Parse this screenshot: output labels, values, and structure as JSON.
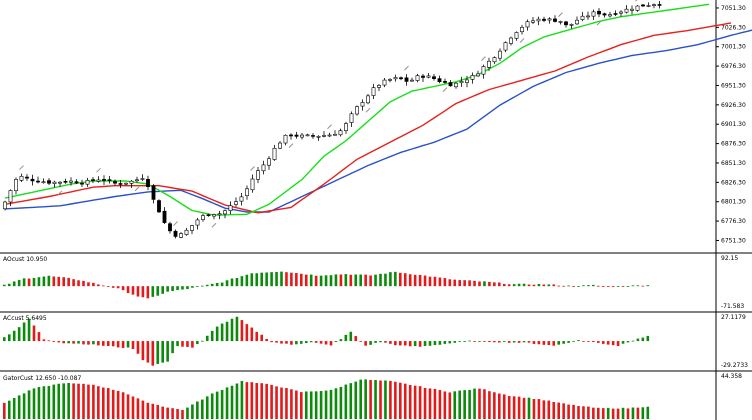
{
  "colors": {
    "background": "#ffffff",
    "bull_candle": "#ffffff",
    "bear_candle": "#000000",
    "candle_outline": "#000000",
    "jaw": "#2a52c8",
    "teeth": "#e8201c",
    "lips": "#18e018",
    "hist_up": "#0b8a0b",
    "hist_down": "#e41a1a",
    "fractal": "#909090",
    "separator": "#000000"
  },
  "chart_data": [
    {
      "type": "candlestick",
      "panel": "price",
      "price_ticks": [
        "7051.30",
        "7026.30",
        "7001.30",
        "6976.30",
        "6951.30",
        "6926.30",
        "6901.30",
        "6876.30",
        "6851.30",
        "6826.30",
        "6801.30",
        "6776.30",
        "6751.30"
      ],
      "ylim": [
        6739,
        7059
      ],
      "n_bars": 120,
      "anchors": [
        [
          0,
          6792
        ],
        [
          2,
          6822
        ],
        [
          3,
          6835
        ],
        [
          5,
          6830
        ],
        [
          9,
          6826
        ],
        [
          12,
          6828
        ],
        [
          15,
          6826
        ],
        [
          18,
          6831
        ],
        [
          21,
          6824
        ],
        [
          24,
          6828
        ],
        [
          26,
          6834
        ],
        [
          27,
          6815
        ],
        [
          28,
          6796
        ],
        [
          29,
          6785
        ],
        [
          30,
          6767
        ],
        [
          32,
          6756
        ],
        [
          34,
          6766
        ],
        [
          36,
          6781
        ],
        [
          38,
          6786
        ],
        [
          40,
          6786
        ],
        [
          42,
          6798
        ],
        [
          44,
          6810
        ],
        [
          46,
          6836
        ],
        [
          48,
          6852
        ],
        [
          50,
          6874
        ],
        [
          52,
          6888
        ],
        [
          54,
          6886
        ],
        [
          57,
          6886
        ],
        [
          60,
          6888
        ],
        [
          62,
          6894
        ],
        [
          64,
          6918
        ],
        [
          66,
          6934
        ],
        [
          68,
          6950
        ],
        [
          70,
          6958
        ],
        [
          72,
          6961
        ],
        [
          74,
          6956
        ],
        [
          76,
          6964
        ],
        [
          78,
          6962
        ],
        [
          80,
          6956
        ],
        [
          82,
          6952
        ],
        [
          84,
          6958
        ],
        [
          86,
          6964
        ],
        [
          88,
          6978
        ],
        [
          90,
          6992
        ],
        [
          92,
          7010
        ],
        [
          94,
          7024
        ],
        [
          96,
          7034
        ],
        [
          98,
          7037
        ],
        [
          100,
          7036
        ],
        [
          102,
          7034
        ],
        [
          103,
          7025
        ],
        [
          104,
          7034
        ],
        [
          106,
          7040
        ],
        [
          108,
          7046
        ],
        [
          110,
          7042
        ],
        [
          112,
          7046
        ],
        [
          114,
          7050
        ],
        [
          116,
          7054
        ],
        [
          118,
          7056
        ],
        [
          119,
          7057
        ]
      ],
      "alligator": {
        "jaw": [
          [
            0,
            6792
          ],
          [
            10,
            6796
          ],
          [
            20,
            6808
          ],
          [
            26,
            6814
          ],
          [
            32,
            6816
          ],
          [
            36,
            6805
          ],
          [
            40,
            6793
          ],
          [
            44,
            6788
          ],
          [
            48,
            6788
          ],
          [
            54,
            6808
          ],
          [
            60,
            6828
          ],
          [
            66,
            6848
          ],
          [
            72,
            6865
          ],
          [
            78,
            6878
          ],
          [
            84,
            6895
          ],
          [
            90,
            6926
          ],
          [
            96,
            6950
          ],
          [
            102,
            6968
          ],
          [
            108,
            6980
          ],
          [
            114,
            6990
          ],
          [
            120,
            6996
          ],
          [
            126,
            7004
          ],
          [
            132,
            7016
          ],
          [
            136,
            7023
          ]
        ],
        "teeth": [
          [
            0,
            6798
          ],
          [
            8,
            6808
          ],
          [
            16,
            6820
          ],
          [
            20,
            6822
          ],
          [
            28,
            6822
          ],
          [
            34,
            6815
          ],
          [
            40,
            6797
          ],
          [
            46,
            6787
          ],
          [
            52,
            6794
          ],
          [
            58,
            6824
          ],
          [
            64,
            6856
          ],
          [
            70,
            6878
          ],
          [
            76,
            6900
          ],
          [
            82,
            6928
          ],
          [
            88,
            6946
          ],
          [
            94,
            6958
          ],
          [
            100,
            6970
          ],
          [
            106,
            6988
          ],
          [
            112,
            7004
          ],
          [
            118,
            7016
          ],
          [
            124,
            7022
          ],
          [
            128,
            7027
          ],
          [
            132,
            7032
          ]
        ],
        "lips": [
          [
            0,
            6806
          ],
          [
            6,
            6815
          ],
          [
            12,
            6824
          ],
          [
            16,
            6828
          ],
          [
            22,
            6828
          ],
          [
            26,
            6824
          ],
          [
            30,
            6808
          ],
          [
            34,
            6790
          ],
          [
            38,
            6784
          ],
          [
            44,
            6785
          ],
          [
            48,
            6798
          ],
          [
            54,
            6830
          ],
          [
            58,
            6860
          ],
          [
            62,
            6880
          ],
          [
            66,
            6905
          ],
          [
            70,
            6930
          ],
          [
            74,
            6944
          ],
          [
            78,
            6950
          ],
          [
            82,
            6956
          ],
          [
            86,
            6965
          ],
          [
            90,
            6980
          ],
          [
            94,
            7000
          ],
          [
            98,
            7014
          ],
          [
            104,
            7026
          ],
          [
            108,
            7034
          ],
          [
            112,
            7040
          ],
          [
            116,
            7044
          ],
          [
            120,
            7048
          ],
          [
            124,
            7052
          ],
          [
            128,
            7056
          ]
        ]
      }
    },
    {
      "type": "bar",
      "panel": "histogram",
      "title": "AOcust 10.950",
      "y_ticks": [
        "92.15",
        "-71.583"
      ],
      "ylim": [
        -75,
        95
      ],
      "anchors": [
        [
          0,
          3
        ],
        [
          4,
          24
        ],
        [
          9,
          32
        ],
        [
          14,
          23
        ],
        [
          19,
          6
        ],
        [
          23,
          -8
        ],
        [
          27,
          -32
        ],
        [
          29,
          -40
        ],
        [
          33,
          -18
        ],
        [
          38,
          -6
        ],
        [
          44,
          13
        ],
        [
          50,
          41
        ],
        [
          56,
          47
        ],
        [
          63,
          34
        ],
        [
          69,
          38
        ],
        [
          74,
          34
        ],
        [
          79,
          45
        ],
        [
          85,
          33
        ],
        [
          91,
          20
        ],
        [
          97,
          14
        ],
        [
          103,
          6
        ],
        [
          109,
          6
        ],
        [
          115,
          0
        ],
        [
          119,
          3
        ],
        [
          122,
          -2
        ],
        [
          128,
          2
        ],
        [
          130,
          4
        ]
      ]
    },
    {
      "type": "bar",
      "panel": "histogram",
      "title": "ACcust 5.6495",
      "y_ticks": [
        "27.1179",
        "-29.2733"
      ],
      "ylim": [
        -30,
        28
      ],
      "anchors": [
        [
          0,
          4
        ],
        [
          3,
          15
        ],
        [
          5,
          24
        ],
        [
          8,
          2
        ],
        [
          12,
          -2
        ],
        [
          16,
          -3
        ],
        [
          20,
          -5
        ],
        [
          26,
          -8
        ],
        [
          28,
          -20
        ],
        [
          30,
          -26
        ],
        [
          33,
          -22
        ],
        [
          35,
          -5
        ],
        [
          38,
          -7
        ],
        [
          40,
          0
        ],
        [
          43,
          16
        ],
        [
          47,
          26
        ],
        [
          50,
          14
        ],
        [
          54,
          -1
        ],
        [
          58,
          -4
        ],
        [
          62,
          -1
        ],
        [
          66,
          -5
        ],
        [
          70,
          10
        ],
        [
          73,
          -5
        ],
        [
          76,
          -1
        ],
        [
          80,
          -5
        ],
        [
          84,
          -6
        ],
        [
          89,
          -3
        ],
        [
          94,
          0
        ],
        [
          100,
          -1
        ],
        [
          106,
          -2
        ],
        [
          111,
          -5
        ],
        [
          116,
          1
        ],
        [
          120,
          -2
        ],
        [
          124,
          -5
        ],
        [
          128,
          3
        ],
        [
          130,
          5
        ]
      ]
    },
    {
      "type": "bar",
      "panel": "histogram",
      "title": "GatorCust 12.650 -10.087",
      "y_ticks": [
        "44.358"
      ],
      "ylim": [
        0,
        50
      ],
      "anchors": [
        [
          0,
          18
        ],
        [
          6,
          34
        ],
        [
          12,
          40
        ],
        [
          18,
          38
        ],
        [
          24,
          30
        ],
        [
          28,
          20
        ],
        [
          32,
          14
        ],
        [
          36,
          10
        ],
        [
          42,
          28
        ],
        [
          48,
          42
        ],
        [
          54,
          38
        ],
        [
          60,
          30
        ],
        [
          66,
          32
        ],
        [
          72,
          44
        ],
        [
          78,
          42
        ],
        [
          84,
          36
        ],
        [
          90,
          30
        ],
        [
          96,
          34
        ],
        [
          102,
          26
        ],
        [
          108,
          22
        ],
        [
          114,
          16
        ],
        [
          120,
          12
        ],
        [
          126,
          12
        ],
        [
          130,
          14
        ]
      ]
    }
  ]
}
